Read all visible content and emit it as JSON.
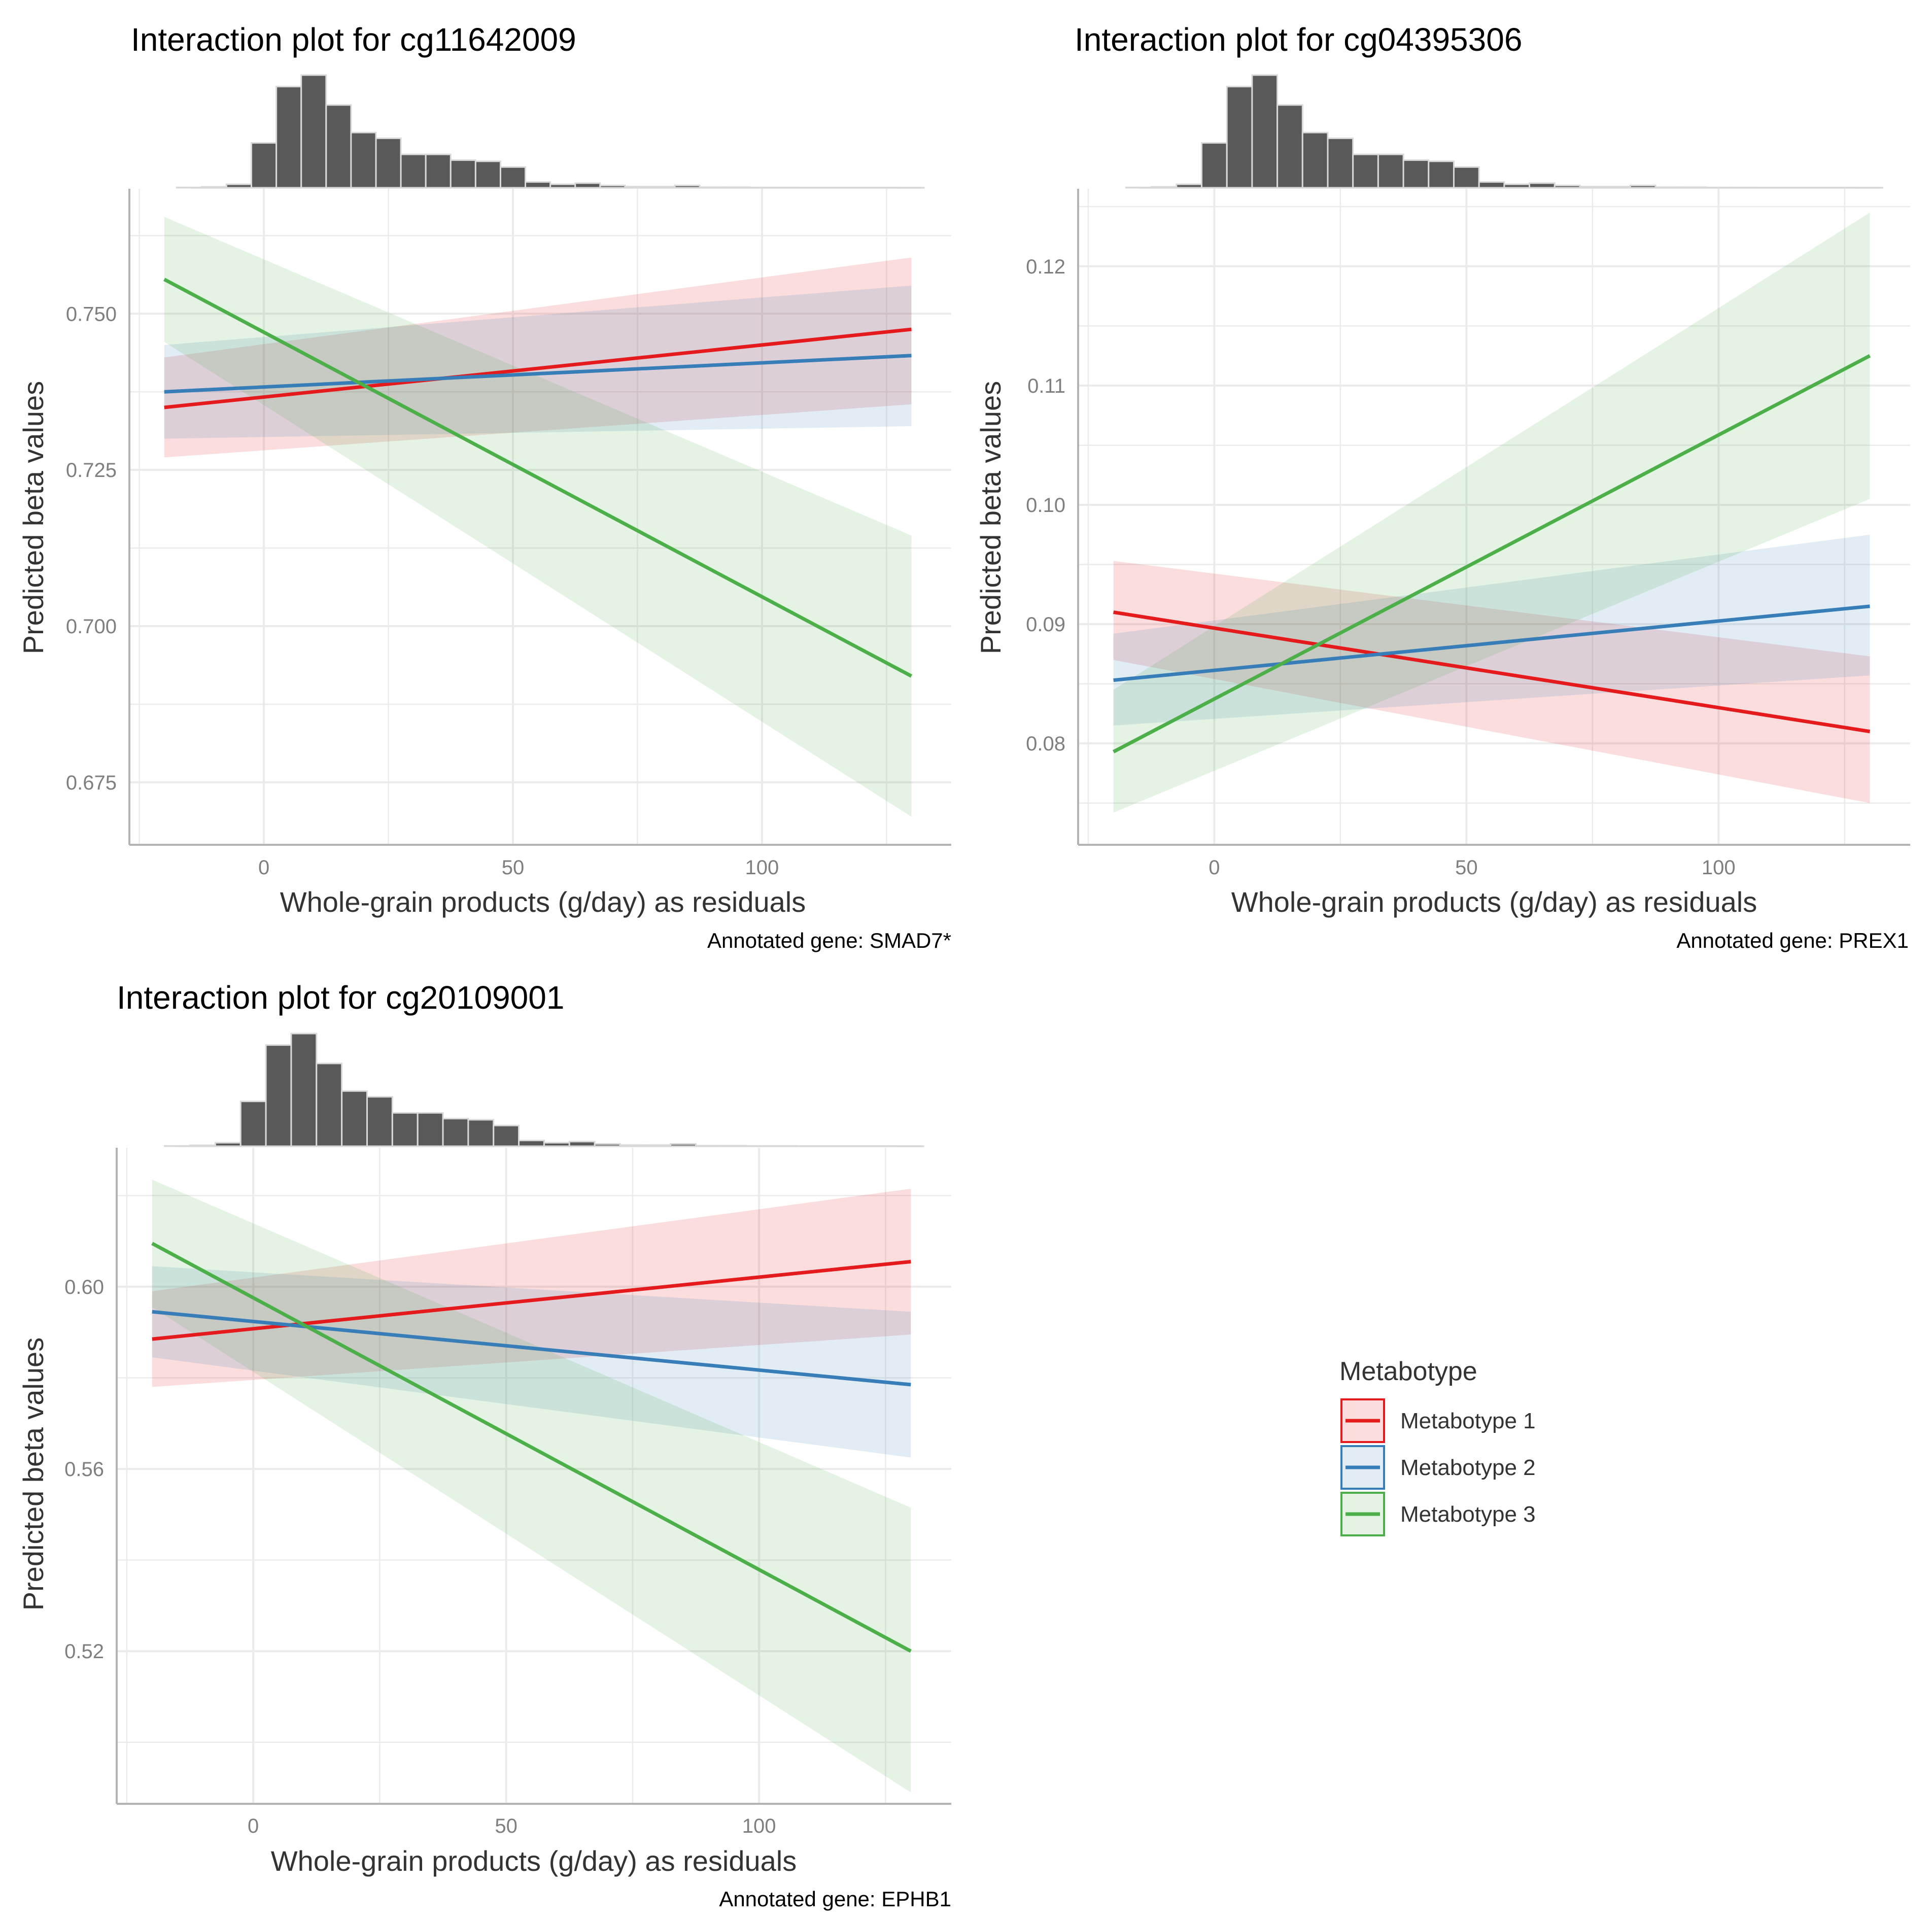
{
  "colors": {
    "metabotype_1": "#E41A1C",
    "metabotype_2": "#377EB8",
    "metabotype_3": "#4DAF4A",
    "histogram_fill": "#595959",
    "histogram_edge": "#D9D9D9",
    "grid": "#EBEBEB",
    "axis": "#B3B3B3"
  },
  "legend": {
    "title": "Metabotype",
    "items": [
      "Metabotype 1",
      "Metabotype 2",
      "Metabotype 3"
    ]
  },
  "chart_data": [
    {
      "type": "line",
      "title": "Interaction plot for cg11642009",
      "xlabel": "Whole-grain products (g/day) as residuals",
      "ylabel": "Predicted beta values",
      "caption": "Annotated gene: SMAD7*",
      "xlim": [
        -27,
        138
      ],
      "ylim": [
        0.665,
        0.77
      ],
      "xticks": [
        0,
        50,
        100
      ],
      "xtick_labels": [
        "0",
        "50",
        "100"
      ],
      "yticks": [
        0.675,
        0.7,
        0.725,
        0.75
      ],
      "ytick_labels": [
        "0.675",
        "0.700",
        "0.725",
        "0.750"
      ],
      "grid": true,
      "x": [
        -20,
        130
      ],
      "series": [
        {
          "name": "Metabotype 1",
          "values": [
            0.735,
            0.7475
          ],
          "lower": [
            0.727,
            0.7355
          ],
          "upper": [
            0.743,
            0.759
          ]
        },
        {
          "name": "Metabotype 2",
          "values": [
            0.7375,
            0.7433
          ],
          "lower": [
            0.73,
            0.732
          ],
          "upper": [
            0.745,
            0.7545
          ]
        },
        {
          "name": "Metabotype 3",
          "values": [
            0.7555,
            0.692
          ],
          "lower": [
            0.7455,
            0.6695
          ],
          "upper": [
            0.7655,
            0.7145
          ]
        }
      ],
      "histogram": {
        "bin_centers": [
          -15,
          -10,
          -5,
          0,
          5,
          10,
          15,
          20,
          25,
          30,
          35,
          40,
          45,
          50,
          55,
          60,
          65,
          70,
          75,
          80,
          85,
          90,
          95,
          100,
          105,
          110,
          115,
          120,
          125,
          130
        ],
        "counts": [
          0.3,
          0.8,
          3,
          39,
          88,
          98,
          72,
          48,
          43,
          29,
          29,
          24,
          23,
          18,
          5,
          3,
          4,
          2,
          1,
          1,
          2,
          0.5,
          0.5,
          0.3,
          0.3,
          0.2,
          0.2,
          0.2,
          0.2,
          0.1
        ]
      }
    },
    {
      "type": "line",
      "title": "Interaction plot for cg04395306",
      "xlabel": "Whole-grain products (g/day) as residuals",
      "ylabel": "Predicted beta values",
      "caption": "Annotated gene: PREX1",
      "xlim": [
        -27,
        138
      ],
      "ylim": [
        0.0715,
        0.1265
      ],
      "xticks": [
        0,
        50,
        100
      ],
      "xtick_labels": [
        "0",
        "50",
        "100"
      ],
      "yticks": [
        0.08,
        0.09,
        0.1,
        0.11,
        0.12
      ],
      "ytick_labels": [
        "0.08",
        "0.09",
        "0.10",
        "0.11",
        "0.12"
      ],
      "grid": true,
      "x": [
        -20,
        130
      ],
      "series": [
        {
          "name": "Metabotype 1",
          "values": [
            0.091,
            0.081
          ],
          "lower": [
            0.087,
            0.075
          ],
          "upper": [
            0.0953,
            0.0873
          ]
        },
        {
          "name": "Metabotype 2",
          "values": [
            0.0853,
            0.0915
          ],
          "lower": [
            0.0815,
            0.0857
          ],
          "upper": [
            0.0892,
            0.0975
          ]
        },
        {
          "name": "Metabotype 3",
          "values": [
            0.0793,
            0.1125
          ],
          "lower": [
            0.0742,
            0.1005
          ],
          "upper": [
            0.0845,
            0.1245
          ]
        }
      ],
      "histogram": {
        "bin_centers": [
          -15,
          -10,
          -5,
          0,
          5,
          10,
          15,
          20,
          25,
          30,
          35,
          40,
          45,
          50,
          55,
          60,
          65,
          70,
          75,
          80,
          85,
          90,
          95,
          100,
          105,
          110,
          115,
          120,
          125,
          130
        ],
        "counts": [
          0.3,
          0.8,
          3,
          39,
          88,
          98,
          72,
          48,
          43,
          29,
          29,
          24,
          23,
          18,
          5,
          3,
          4,
          2,
          1,
          1,
          2,
          0.5,
          0.5,
          0.3,
          0.3,
          0.2,
          0.2,
          0.2,
          0.2,
          0.1
        ]
      }
    },
    {
      "type": "line",
      "title": "Interaction plot for cg20109001",
      "xlabel": "Whole-grain products (g/day) as residuals",
      "ylabel": "Predicted beta values",
      "caption": "Annotated gene: EPHB1",
      "xlim": [
        -27,
        138
      ],
      "ylim": [
        0.4865,
        0.6305
      ],
      "xticks": [
        0,
        50,
        100
      ],
      "xtick_labels": [
        "0",
        "50",
        "100"
      ],
      "yticks": [
        0.52,
        0.56,
        0.6
      ],
      "ytick_labels": [
        "0.52",
        "0.56",
        "0.60"
      ],
      "grid": true,
      "x": [
        -20,
        130
      ],
      "series": [
        {
          "name": "Metabotype 1",
          "values": [
            0.5885,
            0.6055
          ],
          "lower": [
            0.578,
            0.5895
          ],
          "upper": [
            0.599,
            0.6215
          ]
        },
        {
          "name": "Metabotype 2",
          "values": [
            0.5945,
            0.5785
          ],
          "lower": [
            0.5845,
            0.5625
          ],
          "upper": [
            0.6045,
            0.5945
          ]
        },
        {
          "name": "Metabotype 3",
          "values": [
            0.6095,
            0.52
          ],
          "lower": [
            0.5955,
            0.489
          ],
          "upper": [
            0.6235,
            0.5515
          ]
        }
      ],
      "histogram": {
        "bin_centers": [
          -15,
          -10,
          -5,
          0,
          5,
          10,
          15,
          20,
          25,
          30,
          35,
          40,
          45,
          50,
          55,
          60,
          65,
          70,
          75,
          80,
          85,
          90,
          95,
          100,
          105,
          110,
          115,
          120,
          125,
          130
        ],
        "counts": [
          0.3,
          0.8,
          3,
          39,
          88,
          98,
          72,
          48,
          43,
          29,
          29,
          24,
          23,
          18,
          5,
          3,
          4,
          2,
          1,
          1,
          2,
          0.5,
          0.5,
          0.3,
          0.3,
          0.2,
          0.2,
          0.2,
          0.2,
          0.1
        ]
      }
    }
  ]
}
